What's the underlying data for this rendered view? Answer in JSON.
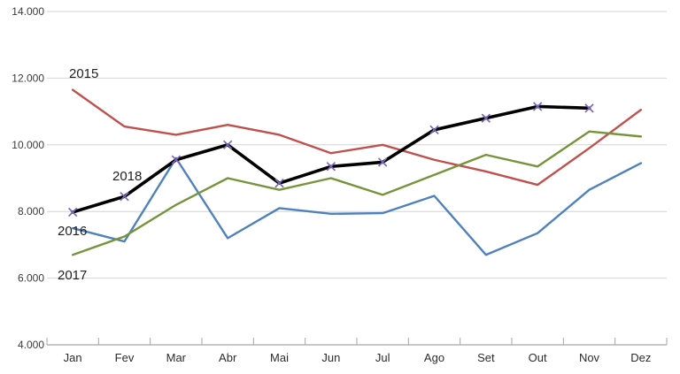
{
  "chart_data": {
    "type": "line",
    "title": "",
    "xlabel": "",
    "ylabel": "",
    "grid": true,
    "legend": "inline-labels-near-lines",
    "categories": [
      "Jan",
      "Fev",
      "Mar",
      "Abr",
      "Mai",
      "Jun",
      "Jul",
      "Ago",
      "Set",
      "Out",
      "Nov",
      "Dez"
    ],
    "y_axis": {
      "min": 4000,
      "max": 14000,
      "step": 2000,
      "ticks": [
        {
          "value": 14000,
          "label": "14.000"
        },
        {
          "value": 12000,
          "label": "12.000"
        },
        {
          "value": 10000,
          "label": "10.000"
        },
        {
          "value": 8000,
          "label": "8.000"
        },
        {
          "value": 6000,
          "label": "6.000"
        },
        {
          "value": 4000,
          "label": "4.000"
        }
      ]
    },
    "series": [
      {
        "name": "2015",
        "color": "#C0504D",
        "marker": "none",
        "values": [
          11650,
          10550,
          10300,
          10600,
          10300,
          9750,
          10000,
          9550,
          9200,
          8800,
          9900,
          11050
        ]
      },
      {
        "name": "2016",
        "color": "#4F81BD",
        "marker": "none",
        "values": [
          7500,
          7100,
          9600,
          7200,
          8100,
          7930,
          7950,
          8470,
          6700,
          7350,
          8650,
          9450
        ]
      },
      {
        "name": "2017",
        "color": "#77933C",
        "marker": "none",
        "values": [
          6700,
          7250,
          8200,
          9000,
          8650,
          9000,
          8500,
          9100,
          9700,
          9350,
          10400,
          10250
        ]
      },
      {
        "name": "2018",
        "color": "#000000",
        "marker": "x",
        "marker_color": "#7B68B6",
        "values": [
          7980,
          8450,
          9550,
          10000,
          8850,
          9350,
          9480,
          10450,
          10800,
          11150,
          11100,
          null
        ]
      }
    ],
    "annotations": [
      {
        "text": "2015",
        "x": 78,
        "y": 88
      },
      {
        "text": "2018",
        "x": 127,
        "y": 204
      },
      {
        "text": "2016",
        "x": 65,
        "y": 266
      },
      {
        "text": "2017",
        "x": 65,
        "y": 316
      }
    ],
    "colors": {
      "gridline": "#d4d4d4",
      "axis_line": "#a6a6a6",
      "background": "#ffffff"
    }
  }
}
